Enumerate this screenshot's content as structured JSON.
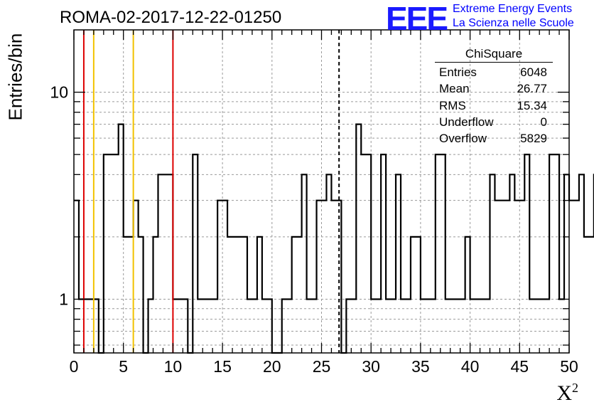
{
  "title": "ROMA-02-2017-12-22-01250",
  "ylabel": "Entries/bin",
  "xlabel": "X",
  "xlabel_sup": "2",
  "logo": {
    "text": "EEE",
    "line1": "Extreme Energy Events",
    "line2": "La Scienza nelle Scuole",
    "color": "#1a1aff"
  },
  "stats": {
    "title": "ChiSquare",
    "rows": [
      {
        "label": "Entries",
        "value": "6048"
      },
      {
        "label": "Mean",
        "value": "26.77"
      },
      {
        "label": "RMS",
        "value": "15.34"
      },
      {
        "label": "Underflow",
        "value": "0"
      },
      {
        "label": "Overflow",
        "value": "5829"
      }
    ]
  },
  "chart_data": {
    "type": "histogram",
    "y_scale": "log",
    "xlim": [
      0,
      50
    ],
    "ylim": [
      0.55,
      20
    ],
    "x_ticks": [
      "0",
      "5",
      "10",
      "15",
      "20",
      "25",
      "30",
      "35",
      "40",
      "45",
      "50"
    ],
    "y_ticks": [
      "1",
      "10"
    ],
    "grid": true,
    "bin_width": 0.5,
    "counts": [
      3,
      1,
      1,
      1,
      1,
      0,
      5,
      5,
      5,
      7,
      2,
      2,
      3,
      2,
      0,
      1,
      2,
      4,
      4,
      4,
      1,
      1,
      1,
      0,
      5,
      1,
      1,
      1,
      1,
      3,
      3,
      2,
      2,
      2,
      2,
      1,
      1,
      2,
      1,
      1,
      0,
      0,
      1,
      1,
      2,
      2,
      4,
      1,
      1,
      3,
      3,
      4,
      3,
      3,
      0,
      1,
      1,
      7,
      5,
      5,
      1,
      1,
      5,
      1,
      1,
      4,
      1,
      1,
      2,
      2,
      1,
      1,
      1,
      5,
      5,
      1,
      1,
      1,
      1,
      2,
      1,
      1,
      1,
      1,
      4,
      3,
      3,
      3,
      4,
      3,
      3,
      5,
      1,
      1,
      1,
      1,
      5,
      5,
      1,
      4,
      3,
      3,
      4,
      2,
      2,
      4,
      2,
      4,
      2,
      9,
      7,
      5,
      7,
      5,
      1,
      1,
      1,
      1,
      1,
      5,
      5,
      1,
      1,
      1,
      1,
      5,
      5,
      2,
      1,
      4,
      3,
      4,
      4,
      5,
      4,
      3,
      2,
      2,
      4,
      3,
      3,
      7,
      7,
      2,
      2,
      2,
      3,
      3,
      2,
      2,
      2,
      5,
      5,
      1,
      1,
      1,
      3,
      3,
      1,
      1,
      2,
      2,
      2,
      1,
      1,
      2,
      2,
      2,
      1,
      7,
      5,
      4,
      7,
      2,
      3,
      1,
      1,
      3,
      2,
      2,
      5,
      5,
      3,
      3,
      3,
      3,
      3,
      4,
      4,
      4,
      3,
      3,
      3,
      3,
      5,
      5,
      5,
      3,
      3,
      3,
      3
    ],
    "vlines": [
      {
        "x": 1,
        "color": "#dd0000",
        "style": "solid"
      },
      {
        "x": 2,
        "color": "#f2c200",
        "style": "solid"
      },
      {
        "x": 6,
        "color": "#f2c200",
        "style": "solid"
      },
      {
        "x": 10,
        "color": "#dd0000",
        "style": "solid"
      },
      {
        "x": 26.77,
        "color": "#000000",
        "style": "dashed"
      }
    ]
  }
}
